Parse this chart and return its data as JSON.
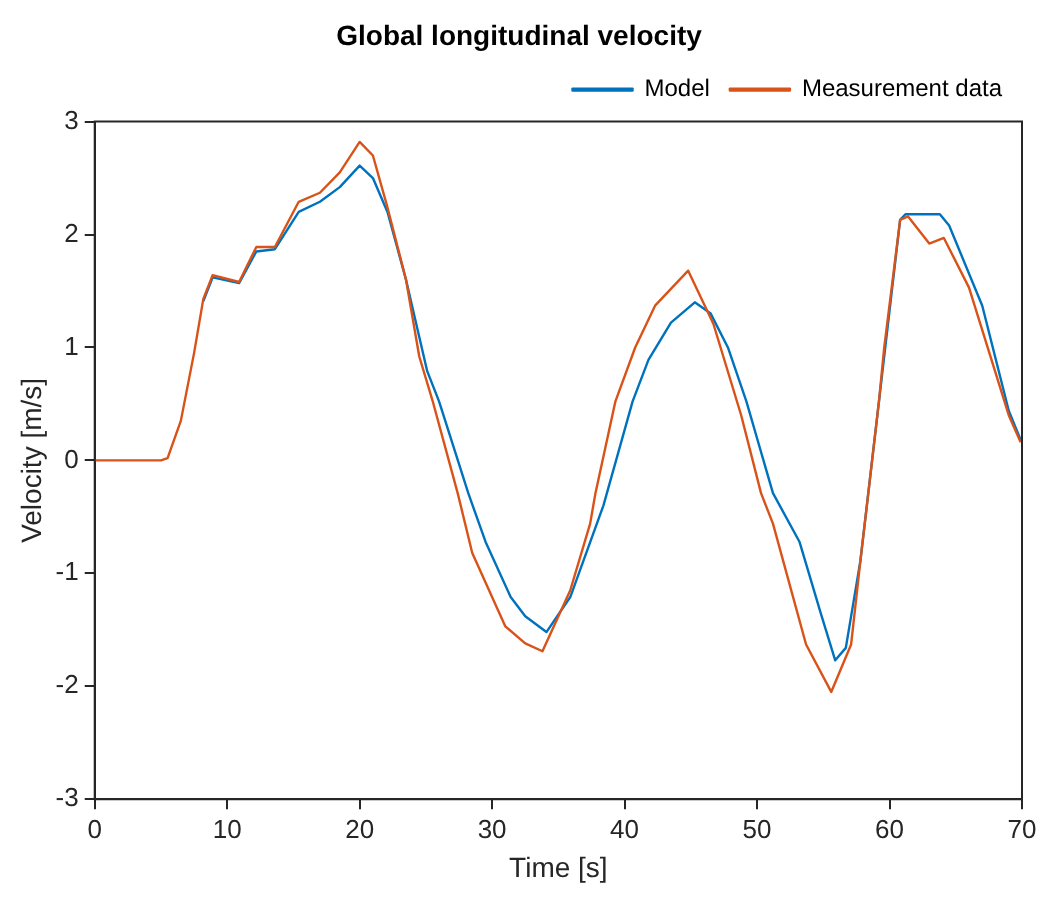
{
  "chart_data": {
    "type": "line",
    "title": "Global longitudinal velocity",
    "xlabel": "Time [s]",
    "ylabel": "Velocity [m/s]",
    "series": [
      {
        "name": "Model",
        "color": "#0072bd",
        "x": [
          8.2,
          8.9,
          10.9,
          12.2,
          13.6,
          15.4,
          17,
          18.5,
          20,
          21,
          22.1,
          23.5,
          25.1,
          26,
          28.2,
          29.5,
          31.4,
          32.5,
          34.1,
          35.9,
          38.4,
          40.6,
          41.8,
          43.5,
          45.3,
          46.5,
          47.8,
          49.2,
          51.2,
          53.2,
          54.8,
          55.9,
          56.7,
          57.8,
          59.2,
          60.8,
          61.2,
          63.8,
          64.5,
          67,
          69,
          69.9
        ],
        "values": [
          1.41,
          1.62,
          1.57,
          1.85,
          1.87,
          2.2,
          2.29,
          2.42,
          2.61,
          2.5,
          2.2,
          1.6,
          0.79,
          0.52,
          -0.29,
          -0.72,
          -1.21,
          -1.38,
          -1.52,
          -1.21,
          -0.4,
          0.52,
          0.89,
          1.22,
          1.4,
          1.3,
          1.0,
          0.52,
          -0.29,
          -0.72,
          -1.35,
          -1.77,
          -1.66,
          -0.89,
          0.52,
          2.13,
          2.18,
          2.18,
          2.08,
          1.37,
          0.44,
          0.18
        ]
      },
      {
        "name": "Measurement data",
        "color": "#d95319",
        "x": [
          0,
          5,
          5.5,
          6.5,
          7.5,
          8.2,
          8.9,
          10.9,
          12.2,
          13.6,
          15.4,
          17,
          18.5,
          20,
          21,
          22.1,
          23.5,
          24.5,
          25.5,
          27.4,
          28.5,
          31,
          32.5,
          33.8,
          35.9,
          37.4,
          37.8,
          39.3,
          40.8,
          42.3,
          44.8,
          46.7,
          48.8,
          50.3,
          51.2,
          53.7,
          55.6,
          57.1,
          57.8,
          58.4,
          59.2,
          59.6,
          60.8,
          61.4,
          63,
          64.1,
          66,
          69,
          69.9
        ],
        "values": [
          0,
          0,
          0.02,
          0.35,
          0.95,
          1.43,
          1.64,
          1.58,
          1.89,
          1.89,
          2.29,
          2.37,
          2.55,
          2.82,
          2.7,
          2.24,
          1.6,
          0.92,
          0.53,
          -0.29,
          -0.82,
          -1.47,
          -1.62,
          -1.69,
          -1.15,
          -0.56,
          -0.29,
          0.52,
          1.0,
          1.37,
          1.68,
          1.21,
          0.4,
          -0.29,
          -0.56,
          -1.63,
          -2.05,
          -1.63,
          -0.89,
          -0.29,
          0.52,
          1.0,
          2.13,
          2.16,
          1.92,
          1.97,
          1.53,
          0.4,
          0.16
        ]
      }
    ],
    "xlim": [
      0,
      70
    ],
    "xticks": [
      0,
      10,
      20,
      30,
      40,
      50,
      60,
      70
    ],
    "ylim": [
      -3,
      3
    ],
    "yticks": [
      -3,
      -2,
      -1,
      0,
      1,
      2,
      3
    ],
    "grid": false,
    "legend": "top right",
    "marker": "none",
    "line_style": "solid"
  }
}
